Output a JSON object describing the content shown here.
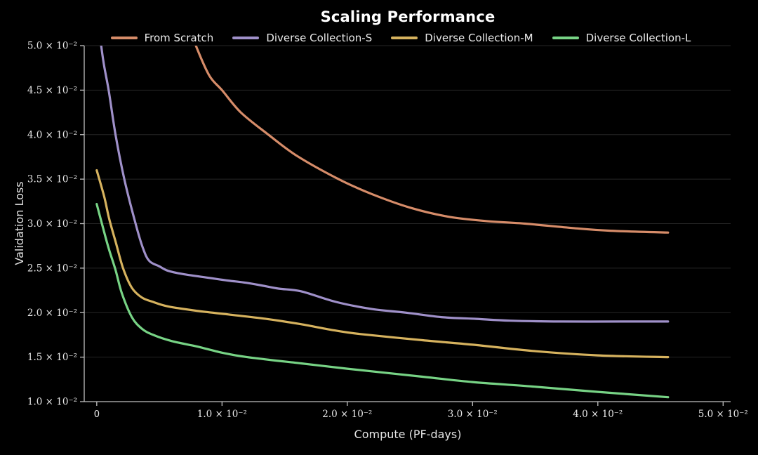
{
  "title": "Scaling Performance",
  "axes": {
    "x_label": "Compute (PF-days)",
    "y_label": "Validation Loss"
  },
  "legend": [
    {
      "label": "From Scratch",
      "color": "#d68c69"
    },
    {
      "label": "Diverse Collection-S",
      "color": "#9f90c9"
    },
    {
      "label": "Diverse Collection-M",
      "color": "#d6b25e"
    },
    {
      "label": "Diverse Collection-L",
      "color": "#77d385"
    }
  ],
  "colors": {
    "background": "#000000",
    "grid": "#262626",
    "spine": "#c0c0c0",
    "tick_text": "#e8e8e8",
    "title_text": "#ffffff"
  },
  "chart_data": {
    "type": "line",
    "title": "Scaling Performance",
    "xlabel": "Compute (PF-days)",
    "ylabel": "Validation Loss",
    "xlim": [
      -0.001,
      0.0506
    ],
    "ylim": [
      0.01,
      0.05
    ],
    "grid": "horizontal",
    "legend_position": "top-center",
    "xticks": {
      "values": [
        0,
        0.01,
        0.02,
        0.03,
        0.04,
        0.05
      ],
      "labels": [
        "0",
        "1.0 × 10⁻²",
        "2.0 × 10⁻²",
        "3.0 × 10⁻²",
        "4.0 × 10⁻²",
        "5.0 × 10⁻²"
      ]
    },
    "yticks": {
      "values": [
        0.01,
        0.015,
        0.02,
        0.025,
        0.03,
        0.035,
        0.04,
        0.045,
        0.05
      ],
      "labels": [
        "1.0 × 10⁻²",
        "1.5 × 10⁻²",
        "2.0 × 10⁻²",
        "2.5 × 10⁻²",
        "3.0 × 10⁻²",
        "3.5 × 10⁻²",
        "4.0 × 10⁻²",
        "4.5 × 10⁻²",
        "5.0 × 10⁻²"
      ]
    },
    "series": [
      {
        "name": "From Scratch",
        "color": "#d68c69",
        "x": [
          0.007,
          0.008,
          0.009,
          0.01,
          0.0115,
          0.0137,
          0.016,
          0.0193,
          0.022,
          0.025,
          0.028,
          0.031,
          0.0342,
          0.038,
          0.041,
          0.0456
        ],
        "y": [
          0.0535,
          0.0497,
          0.0466,
          0.045,
          0.0425,
          0.04,
          0.0376,
          0.035,
          0.0333,
          0.0318,
          0.0308,
          0.0303,
          0.03,
          0.0295,
          0.0292,
          0.029
        ]
      },
      {
        "name": "Diverse Collection-S",
        "color": "#9f90c9",
        "x": [
          0.0,
          0.0005,
          0.00095,
          0.0015,
          0.0022,
          0.0031,
          0.0037,
          0.0042,
          0.005,
          0.0057,
          0.007,
          0.009,
          0.0105,
          0.0117,
          0.013,
          0.0145,
          0.0163,
          0.0191,
          0.022,
          0.0247,
          0.0275,
          0.0303,
          0.033,
          0.037,
          0.042,
          0.0456
        ],
        "y": [
          0.054,
          0.0485,
          0.045,
          0.04,
          0.035,
          0.03,
          0.0272,
          0.0258,
          0.0252,
          0.0247,
          0.0243,
          0.0239,
          0.0236,
          0.0234,
          0.0231,
          0.0227,
          0.0224,
          0.0212,
          0.0204,
          0.02,
          0.0195,
          0.0193,
          0.0191,
          0.019,
          0.019,
          0.019
        ]
      },
      {
        "name": "Diverse Collection-M",
        "color": "#d6b25e",
        "x": [
          0.0,
          0.0006,
          0.001,
          0.0015,
          0.0021,
          0.0028,
          0.0036,
          0.0045,
          0.0057,
          0.008,
          0.0105,
          0.0135,
          0.0163,
          0.019,
          0.021,
          0.026,
          0.03,
          0.0348,
          0.04,
          0.0456
        ],
        "y": [
          0.036,
          0.033,
          0.0305,
          0.028,
          0.025,
          0.0228,
          0.0217,
          0.0212,
          0.0207,
          0.0202,
          0.0198,
          0.0193,
          0.0187,
          0.018,
          0.0176,
          0.0169,
          0.0164,
          0.0157,
          0.0152,
          0.015
        ]
      },
      {
        "name": "Diverse Collection-L",
        "color": "#77d385",
        "x": [
          0.0,
          0.0006,
          0.001,
          0.0015,
          0.002,
          0.0028,
          0.0036,
          0.0045,
          0.006,
          0.008,
          0.01,
          0.012,
          0.0163,
          0.02,
          0.026,
          0.03,
          0.0348,
          0.04,
          0.0456
        ],
        "y": [
          0.0322,
          0.029,
          0.027,
          0.0248,
          0.0222,
          0.0195,
          0.0182,
          0.0175,
          0.0168,
          0.0162,
          0.0155,
          0.015,
          0.0143,
          0.0137,
          0.0128,
          0.0122,
          0.0117,
          0.0111,
          0.0105
        ]
      }
    ]
  }
}
